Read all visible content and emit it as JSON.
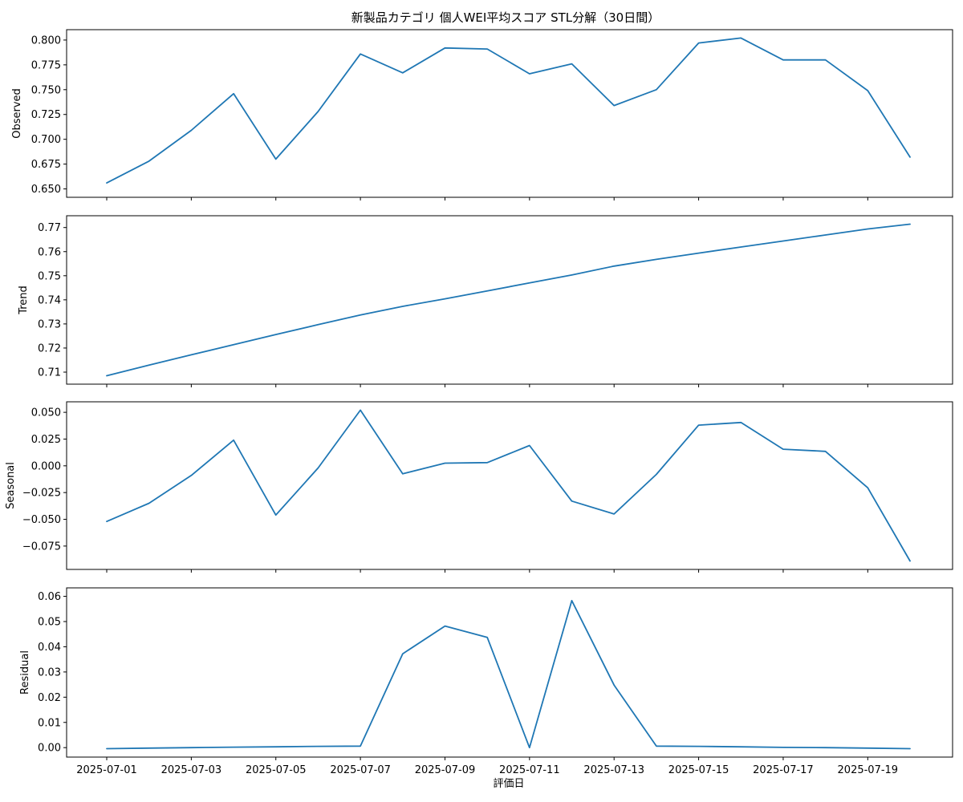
{
  "chart_data": {
    "type": "line",
    "title": "新製品カテゴリ 個人WEI平均スコア STL分解（30日間）",
    "xlabel": "評価日",
    "x": [
      "2025-07-01",
      "2025-07-02",
      "2025-07-03",
      "2025-07-04",
      "2025-07-05",
      "2025-07-06",
      "2025-07-07",
      "2025-07-08",
      "2025-07-09",
      "2025-07-10",
      "2025-07-11",
      "2025-07-12",
      "2025-07-13",
      "2025-07-14",
      "2025-07-15",
      "2025-07-16",
      "2025-07-17",
      "2025-07-18",
      "2025-07-19",
      "2025-07-20"
    ],
    "x_tick_labels": [
      "2025-07-01",
      "2025-07-03",
      "2025-07-05",
      "2025-07-07",
      "2025-07-09",
      "2025-07-11",
      "2025-07-13",
      "2025-07-15",
      "2025-07-17",
      "2025-07-19"
    ],
    "line_color": "#1f77b4",
    "grid": false,
    "panels": [
      {
        "ylabel": "Observed",
        "ylim": [
          0.65,
          0.8
        ],
        "yticks": [
          0.65,
          0.675,
          0.7,
          0.725,
          0.75,
          0.775,
          0.8
        ],
        "ytick_labels": [
          "0.650",
          "0.675",
          "0.700",
          "0.725",
          "0.750",
          "0.775",
          "0.800"
        ],
        "values": [
          0.656,
          0.678,
          0.709,
          0.746,
          0.68,
          0.728,
          0.786,
          0.767,
          0.792,
          0.791,
          0.766,
          0.776,
          0.734,
          0.75,
          0.797,
          0.802,
          0.78,
          0.78,
          0.749,
          0.682
        ]
      },
      {
        "ylabel": "Trend",
        "ylim": [
          0.71,
          0.77
        ],
        "yticks": [
          0.71,
          0.72,
          0.73,
          0.74,
          0.75,
          0.76,
          0.77
        ],
        "ytick_labels": [
          "0.71",
          "0.72",
          "0.73",
          "0.74",
          "0.75",
          "0.76",
          "0.77"
        ],
        "values": [
          0.7085,
          0.7129,
          0.7172,
          0.7214,
          0.7256,
          0.7297,
          0.7337,
          0.7373,
          0.7404,
          0.7437,
          0.747,
          0.7503,
          0.754,
          0.7568,
          0.7594,
          0.7619,
          0.7644,
          0.7669,
          0.7694,
          0.7714
        ]
      },
      {
        "ylabel": "Seasonal",
        "ylim": [
          -0.075,
          0.05
        ],
        "yticks": [
          -0.075,
          -0.05,
          -0.025,
          0.0,
          0.025,
          0.05
        ],
        "ytick_labels": [
          "−0.075",
          "−0.050",
          "−0.025",
          "0.000",
          "0.025",
          "0.050"
        ],
        "values": [
          -0.052,
          -0.035,
          -0.009,
          0.024,
          -0.046,
          -0.002,
          0.052,
          -0.0075,
          0.0025,
          0.003,
          0.019,
          -0.033,
          -0.045,
          -0.008,
          0.038,
          0.0405,
          0.0155,
          0.0135,
          -0.0205,
          -0.089
        ]
      },
      {
        "ylabel": "Residual",
        "ylim": [
          0.0,
          0.06
        ],
        "yticks": [
          0.0,
          0.01,
          0.02,
          0.03,
          0.04,
          0.05,
          0.06
        ],
        "ytick_labels": [
          "0.00",
          "0.01",
          "0.02",
          "0.03",
          "0.04",
          "0.05",
          "0.06"
        ],
        "values": [
          -0.0004,
          -0.0002,
          0.0,
          0.0002,
          0.0003,
          0.0005,
          0.0006,
          0.0372,
          0.0482,
          0.0437,
          0.0,
          0.0583,
          0.0248,
          0.0006,
          0.0005,
          0.0003,
          0.0001,
          0.0,
          -0.0002,
          -0.0004
        ]
      }
    ]
  }
}
